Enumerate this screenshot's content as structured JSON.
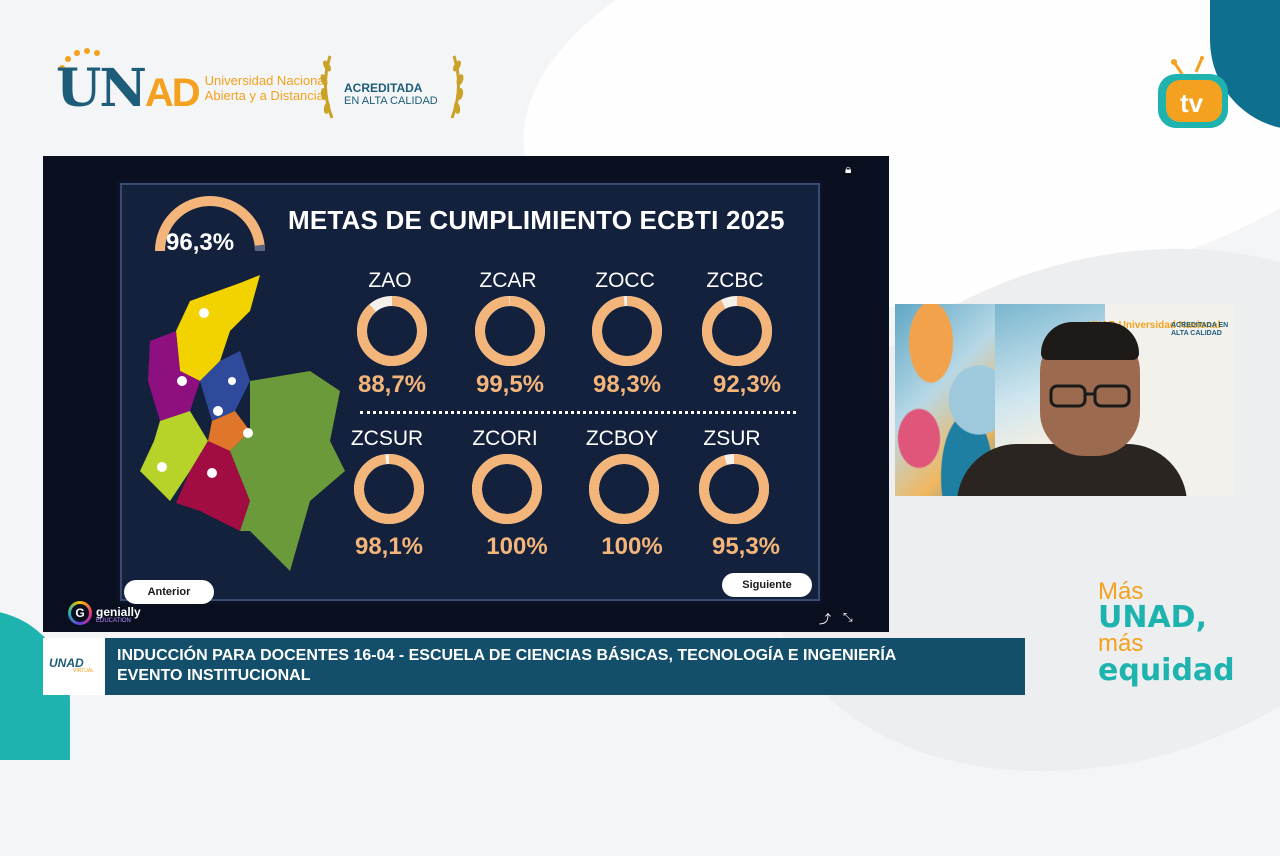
{
  "header": {
    "logo_word_u": "U",
    "logo_word_n": "N",
    "logo_word_ad": "AD",
    "logo_line1": "Universidad Nacional",
    "logo_line2": "Abierta y a Distancia",
    "acred_line1": "ACREDITADA",
    "acred_line2": "EN ALTA CALIDAD",
    "tv_label": "tv"
  },
  "slide": {
    "gauge_value": "96,3%",
    "gauge_fraction": 0.963,
    "title": "METAS DE CUMPLIMIENTO ECBTI 2025",
    "zones": [
      {
        "label": "ZAO",
        "pct": "88,7%",
        "value": 88.7
      },
      {
        "label": "ZCAR",
        "pct": "99,5%",
        "value": 99.5
      },
      {
        "label": "ZOCC",
        "pct": "98,3%",
        "value": 98.3
      },
      {
        "label": "ZCBC",
        "pct": "92,3%",
        "value": 92.3
      },
      {
        "label": "ZCSUR",
        "pct": "98,1%",
        "value": 98.1
      },
      {
        "label": "ZCORI",
        "pct": "100%",
        "value": 100
      },
      {
        "label": "ZCBOY",
        "pct": "100%",
        "value": 100
      },
      {
        "label": "ZSUR",
        "pct": "95,3%",
        "value": 95.3
      }
    ],
    "prev_label": "Anterior",
    "next_label": "Siguiente",
    "genially_brand": "genially",
    "genially_powered": "Powered by",
    "genially_edu": "EDUCATION"
  },
  "lower_third": {
    "line1": "INDUCCIÓN PARA DOCENTES 16-04 - ESCUELA DE CIENCIAS BÁSICAS, TECNOLOGÍA E INGENIERÍA",
    "line2": "EVENTO INSTITUCIONAL",
    "logo_text": "UNAD",
    "logo_sub": "VIRTUAL"
  },
  "slogan": {
    "l1": "Más",
    "l2": "UNAD,",
    "l3": "más",
    "l4": "equidad"
  },
  "webcam": {
    "logo_text": "UNAD Universidad Nacional",
    "acred": "ACREDITADA EN ALTA CALIDAD"
  },
  "colors": {
    "accent_orange": "#f3a11e",
    "donut_orange": "#f3b57a",
    "brand_teal": "#1d5d7a",
    "slide_bg": "#13213d",
    "lower_bar": "#134e6b"
  }
}
